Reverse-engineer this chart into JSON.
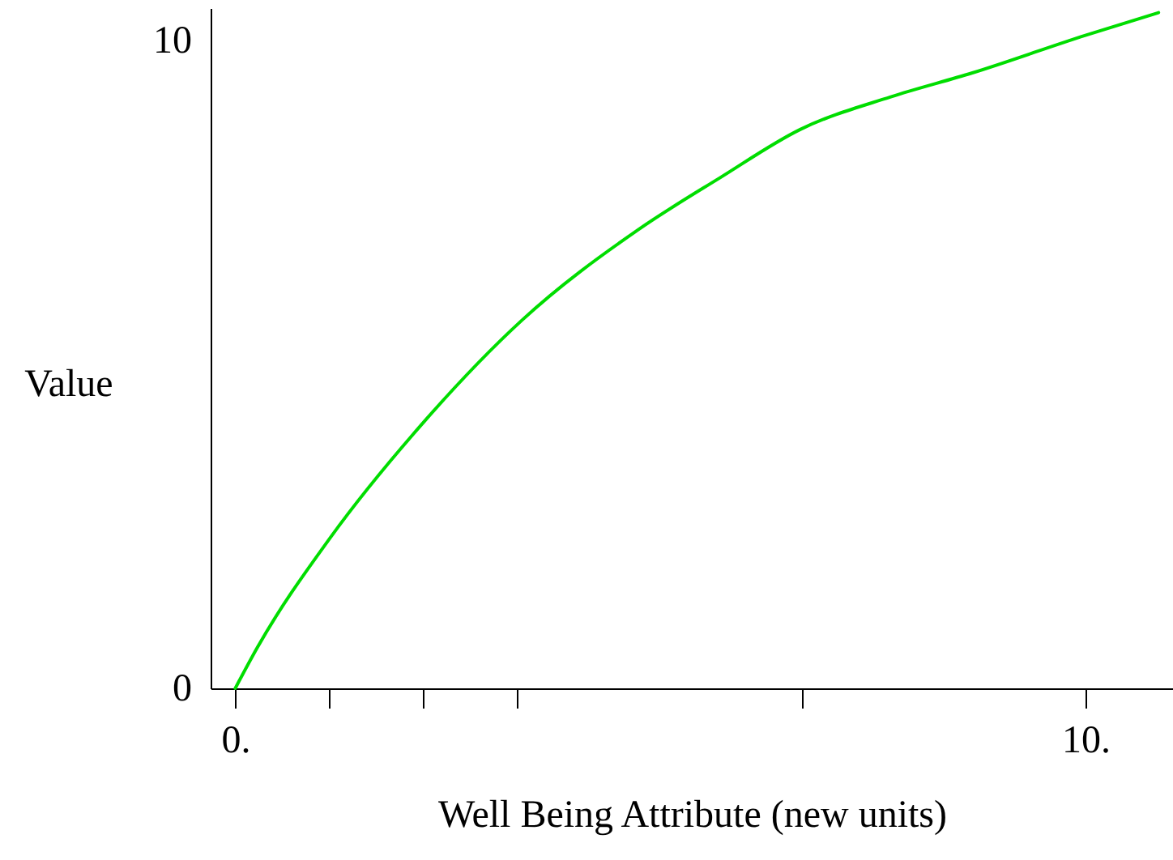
{
  "chart_data": {
    "type": "line",
    "xlabel": "Well Being Attribute (new units)",
    "ylabel": "Value",
    "x": [
      0,
      0.26,
      1.12,
      2.23,
      3.37,
      4.74,
      5.7,
      6.65,
      7.71,
      8.67,
      10,
      10.86
    ],
    "series": [
      {
        "color": "#00dd00",
        "values": [
          0,
          0.63,
          2.33,
          4.13,
          5.68,
          7.08,
          7.88,
          8.63,
          9.13,
          9.5,
          10.08,
          10.43
        ]
      }
    ],
    "xlim": [
      -0.29,
      11.03
    ],
    "ylim": [
      0,
      10.5
    ],
    "xticks": [
      {
        "value": 0,
        "label": "0."
      },
      {
        "value": 1.1,
        "label": null
      },
      {
        "value": 2.21,
        "label": null
      },
      {
        "value": 3.31,
        "label": null
      },
      {
        "value": 6.67,
        "label": null
      },
      {
        "value": 10,
        "label": "10."
      }
    ],
    "yticks": [
      0,
      10
    ],
    "grid": false,
    "marker": "none",
    "line_style": "solid"
  }
}
